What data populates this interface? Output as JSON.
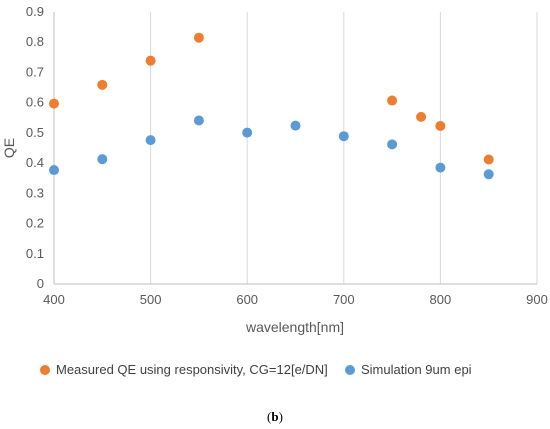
{
  "chart_data": {
    "type": "scatter",
    "title": "",
    "xlabel": "wavelength[nm]",
    "ylabel": "QE",
    "xlim": [
      400,
      900
    ],
    "ylim": [
      0,
      0.9
    ],
    "xticks": [
      "400",
      "500",
      "600",
      "700",
      "800",
      "900"
    ],
    "yticks": [
      "0",
      "0.1",
      "0.2",
      "0.3",
      "0.4",
      "0.5",
      "0.6",
      "0.7",
      "0.8",
      "0.9"
    ],
    "grid": "vertical",
    "legend_position": "bottom",
    "series": [
      {
        "name": "Measured QE using responsivity, CG=12[e/DN]",
        "color": "#ED7D31",
        "points": [
          [
            400,
            0.597
          ],
          [
            450,
            0.659
          ],
          [
            500,
            0.739
          ],
          [
            550,
            0.815
          ],
          [
            750,
            0.607
          ],
          [
            780,
            0.553
          ],
          [
            800,
            0.523
          ],
          [
            850,
            0.412
          ]
        ]
      },
      {
        "name": "Simulation 9um epi",
        "color": "#5B9BD5",
        "points": [
          [
            400,
            0.377
          ],
          [
            450,
            0.413
          ],
          [
            500,
            0.476
          ],
          [
            550,
            0.541
          ],
          [
            600,
            0.501
          ],
          [
            650,
            0.524
          ],
          [
            700,
            0.489
          ],
          [
            750,
            0.462
          ],
          [
            800,
            0.385
          ],
          [
            850,
            0.363
          ]
        ]
      }
    ]
  },
  "caption": "(b)"
}
